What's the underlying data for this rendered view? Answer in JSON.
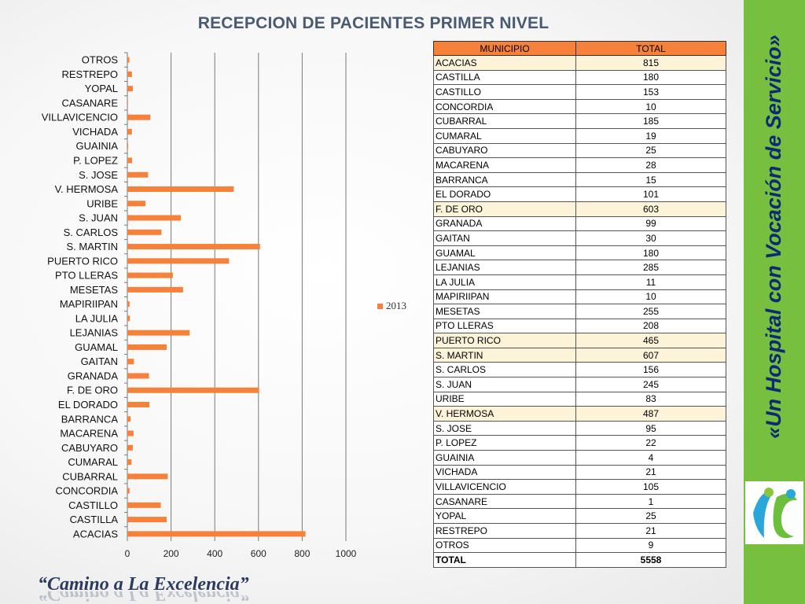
{
  "title": "RECEPCION DE PACIENTES PRIMER NIVEL",
  "chart_data": {
    "type": "bar",
    "orientation": "horizontal",
    "categories": [
      "ACACIAS",
      "CASTILLA ",
      "CASTILLO",
      "CONCORDIA",
      "CUBARRAL",
      "CUMARAL",
      "CABUYARO",
      "MACARENA",
      "BARRANCA ",
      "EL DORADO",
      "F. DE ORO",
      "GRANADA",
      "GAITAN",
      "GUAMAL",
      "LEJANIAS",
      "LA JULIA",
      "MAPIRIIPAN",
      "MESETAS",
      "PTO LLERAS",
      "PUERTO RICO",
      "S. MARTIN",
      "S. CARLOS",
      "S. JUAN ",
      "URIBE",
      "V. HERMOSA",
      "S. JOSE",
      "P. LOPEZ",
      "GUAINIA",
      "VICHADA",
      "VILLAVICENCIO",
      "CASANARE",
      "YOPAL",
      "RESTREPO",
      "OTROS"
    ],
    "series": [
      {
        "name": "2013",
        "values": [
          815,
          180,
          153,
          10,
          185,
          19,
          25,
          28,
          15,
          101,
          603,
          99,
          30,
          180,
          285,
          11,
          10,
          255,
          208,
          465,
          607,
          156,
          245,
          83,
          487,
          95,
          22,
          4,
          21,
          105,
          1,
          25,
          21,
          9
        ]
      }
    ],
    "xlim": [
      0,
      1000
    ],
    "xticks": [
      "0",
      "200",
      "400",
      "600",
      "800",
      "1000"
    ],
    "grid": "vertical",
    "legend_position": "right",
    "bar_color": "#f5813b"
  },
  "table": {
    "headers": [
      "MUNICIPIO",
      "TOTAL"
    ],
    "rows": [
      {
        "municipio": "ACACIAS",
        "total": "815",
        "highlight": true
      },
      {
        "municipio": "CASTILLA",
        "total": "180"
      },
      {
        "municipio": "CASTILLO",
        "total": "153"
      },
      {
        "municipio": "CONCORDIA",
        "total": "10"
      },
      {
        "municipio": "CUBARRAL",
        "total": "185"
      },
      {
        "municipio": "CUMARAL",
        "total": "19"
      },
      {
        "municipio": "CABUYARO",
        "total": "25"
      },
      {
        "municipio": "MACARENA",
        "total": "28"
      },
      {
        "municipio": "BARRANCA",
        "total": "15"
      },
      {
        "municipio": "EL DORADO",
        "total": "101"
      },
      {
        "municipio": "F. DE ORO",
        "total": "603",
        "highlight": true
      },
      {
        "municipio": "GRANADA",
        "total": "99"
      },
      {
        "municipio": "GAITAN",
        "total": "30"
      },
      {
        "municipio": "GUAMAL",
        "total": "180"
      },
      {
        "municipio": "LEJANIAS",
        "total": "285"
      },
      {
        "municipio": "LA JULIA",
        "total": "11"
      },
      {
        "municipio": "MAPIRIIPAN",
        "total": "10"
      },
      {
        "municipio": "MESETAS",
        "total": "255"
      },
      {
        "municipio": "PTO LLERAS",
        "total": "208"
      },
      {
        "municipio": "PUERTO RICO",
        "total": "465",
        "highlight": true
      },
      {
        "municipio": "S. MARTIN",
        "total": "607",
        "highlight": true
      },
      {
        "municipio": "S. CARLOS",
        "total": "156"
      },
      {
        "municipio": "S. JUAN",
        "total": "245"
      },
      {
        "municipio": "URIBE",
        "total": "83"
      },
      {
        "municipio": "V. HERMOSA",
        "total": "487",
        "highlight": true
      },
      {
        "municipio": "S. JOSE",
        "total": "95"
      },
      {
        "municipio": "P. LOPEZ",
        "total": "22"
      },
      {
        "municipio": "GUAINIA",
        "total": "4"
      },
      {
        "municipio": "VICHADA",
        "total": "21"
      },
      {
        "municipio": "VILLAVICENCIO",
        "total": "105"
      },
      {
        "municipio": "CASANARE",
        "total": "1"
      },
      {
        "municipio": "YOPAL",
        "total": "25"
      },
      {
        "municipio": "RESTREPO",
        "total": "21"
      },
      {
        "municipio": "OTROS",
        "total": "9"
      }
    ],
    "total_label": "TOTAL",
    "total_value": "5558"
  },
  "sidebar": {
    "slogan": "«Un Hospital con Vocación de Servicio»",
    "logo_icon": "hospital-logo-icon"
  },
  "footer": {
    "motto": "“Camino a La Excelencia”"
  },
  "colors": {
    "accent": "#f5813b",
    "sidebar": "#77bf3f",
    "title": "#4a5a73",
    "highlight_row": "#fdf3d8"
  }
}
